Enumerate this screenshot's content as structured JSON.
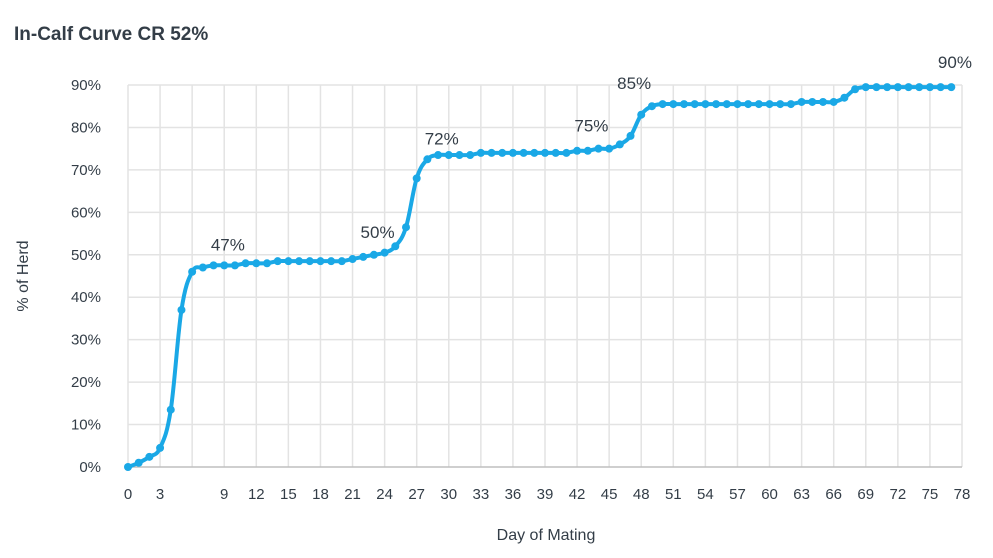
{
  "chart_data": {
    "type": "line",
    "title": "In-Calf Curve CR 52%",
    "xlabel": "Day of Mating",
    "ylabel": "% of Herd",
    "xlim": [
      0,
      78
    ],
    "ylim": [
      0,
      90
    ],
    "x_ticks": [
      "0",
      "3",
      "9",
      "12",
      "15",
      "18",
      "21",
      "24",
      "27",
      "30",
      "33",
      "36",
      "39",
      "42",
      "45",
      "48",
      "51",
      "54",
      "57",
      "60",
      "63",
      "66",
      "69",
      "72",
      "75",
      "78"
    ],
    "y_ticks": [
      "0%",
      "10%",
      "20%",
      "30%",
      "40%",
      "50%",
      "60%",
      "70%",
      "80%",
      "90%"
    ],
    "grid": true,
    "color": "#1aa8e6",
    "series": [
      {
        "x": [
          0,
          1,
          2,
          3,
          4,
          5,
          6,
          7,
          8,
          9,
          10,
          11,
          12,
          13,
          14,
          15,
          16,
          17,
          18,
          19,
          20,
          21,
          22,
          23,
          24,
          25,
          26,
          27,
          28,
          29,
          30,
          31,
          32,
          33,
          34,
          35,
          36,
          37,
          38,
          39,
          40,
          41,
          42,
          43,
          44,
          45,
          46,
          47,
          48,
          49,
          50,
          51,
          52,
          53,
          54,
          55,
          56,
          57,
          58,
          59,
          60,
          61,
          62,
          63,
          64,
          65,
          66,
          67,
          68,
          69,
          70,
          71,
          72,
          73,
          74,
          75,
          76,
          77
        ],
        "values": [
          0,
          1,
          2.4,
          4.5,
          13.5,
          37,
          46,
          47,
          47.5,
          47.5,
          47.5,
          48,
          48,
          48,
          48.5,
          48.5,
          48.5,
          48.5,
          48.5,
          48.5,
          48.5,
          49,
          49.5,
          50,
          50.5,
          52,
          56.5,
          68,
          72.5,
          73.5,
          73.5,
          73.5,
          73.5,
          74,
          74,
          74,
          74,
          74,
          74,
          74,
          74,
          74,
          74.5,
          74.5,
          75,
          75,
          76,
          78,
          83,
          85,
          85.5,
          85.5,
          85.5,
          85.5,
          85.5,
          85.5,
          85.5,
          85.5,
          85.5,
          85.5,
          85.5,
          85.5,
          85.5,
          86,
          86,
          86,
          86,
          87,
          89,
          89.5,
          89.5,
          89.5,
          89.5,
          89.5,
          89.5,
          89.5,
          89.5,
          89.5
        ]
      }
    ],
    "annotations": [
      {
        "x": 7,
        "y": 47,
        "label": "47%"
      },
      {
        "x": 21,
        "y": 50,
        "label": "50%"
      },
      {
        "x": 27,
        "y": 72,
        "label": "72%"
      },
      {
        "x": 41,
        "y": 75,
        "label": "75%"
      },
      {
        "x": 45,
        "y": 85,
        "label": "85%"
      },
      {
        "x": 75,
        "y": 90,
        "label": "90%"
      }
    ]
  }
}
